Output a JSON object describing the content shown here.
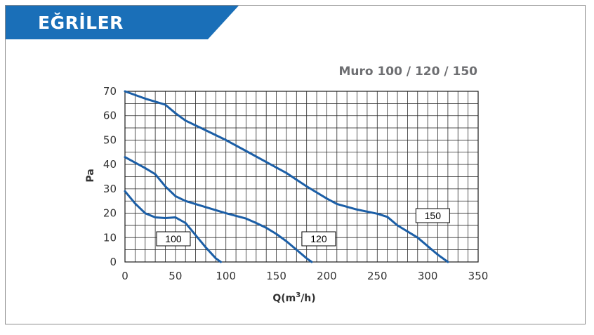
{
  "header": {
    "title": "EĞRİLER",
    "bg_color": "#1a6fb8"
  },
  "chart_data": {
    "type": "line",
    "title": "Muro 100 /  120 / 150",
    "xlabel_main": "Q(m",
    "xlabel_sup": "3",
    "xlabel_tail": "/h)",
    "ylabel": "Pa",
    "xlim": [
      0,
      350
    ],
    "ylim": [
      0,
      70
    ],
    "x_ticks": [
      0,
      50,
      100,
      150,
      200,
      250,
      300,
      350
    ],
    "y_ticks": [
      0,
      10,
      20,
      30,
      40,
      50,
      60,
      70
    ],
    "grid": true,
    "line_color": "#1b5ea6",
    "series": [
      {
        "name": "100",
        "points": [
          [
            0,
            29
          ],
          [
            10,
            24
          ],
          [
            20,
            20
          ],
          [
            30,
            18.3
          ],
          [
            40,
            18
          ],
          [
            50,
            18.3
          ],
          [
            60,
            16
          ],
          [
            70,
            11
          ],
          [
            80,
            6
          ],
          [
            90,
            1.5
          ],
          [
            95,
            0
          ]
        ]
      },
      {
        "name": "120",
        "points": [
          [
            0,
            43
          ],
          [
            20,
            38.5
          ],
          [
            30,
            36
          ],
          [
            40,
            31
          ],
          [
            50,
            27
          ],
          [
            60,
            25
          ],
          [
            80,
            22.5
          ],
          [
            100,
            20
          ],
          [
            120,
            17.8
          ],
          [
            130,
            16
          ],
          [
            140,
            14
          ],
          [
            150,
            11.5
          ],
          [
            160,
            8.5
          ],
          [
            170,
            5
          ],
          [
            180,
            1.5
          ],
          [
            185,
            0
          ]
        ]
      },
      {
        "name": "150",
        "points": [
          [
            0,
            70
          ],
          [
            20,
            67
          ],
          [
            40,
            64.5
          ],
          [
            50,
            61
          ],
          [
            60,
            58
          ],
          [
            80,
            54
          ],
          [
            100,
            50
          ],
          [
            120,
            45.5
          ],
          [
            140,
            41
          ],
          [
            160,
            36.5
          ],
          [
            180,
            31
          ],
          [
            200,
            26
          ],
          [
            210,
            23.8
          ],
          [
            230,
            21.5
          ],
          [
            250,
            19.8
          ],
          [
            260,
            18.5
          ],
          [
            270,
            15
          ],
          [
            290,
            10
          ],
          [
            310,
            3
          ],
          [
            320,
            0
          ]
        ]
      }
    ],
    "labels": [
      {
        "series": "100",
        "text": "100",
        "x": 48,
        "y": 9.5
      },
      {
        "series": "120",
        "text": "120",
        "x": 192,
        "y": 9.5
      },
      {
        "series": "150",
        "text": "150",
        "x": 305,
        "y": 19
      }
    ]
  }
}
